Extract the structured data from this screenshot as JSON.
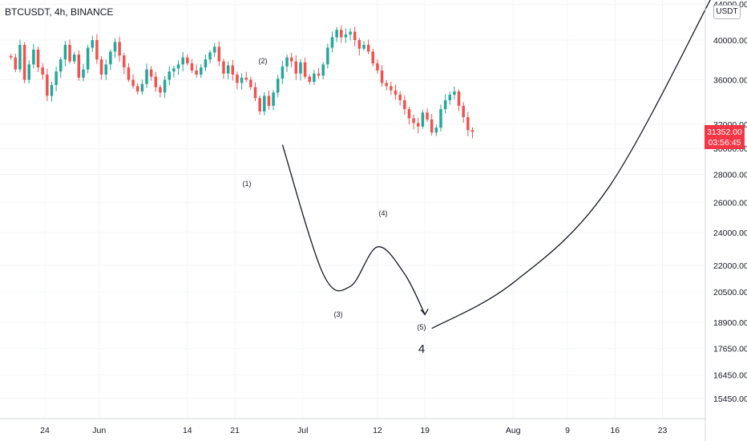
{
  "header": {
    "title": "BTCUSDT, 4h, BINANCE",
    "currency_badge": "USDT"
  },
  "chart_data": {
    "type": "candlestick",
    "symbol": "BTCUSDT",
    "interval": "4h",
    "exchange": "BINANCE",
    "y_axis": {
      "scale": "log",
      "ticks": [
        "44000.00",
        "40000.00",
        "36000.00",
        "32000.00",
        "30000.00",
        "28000.00",
        "26000.00",
        "24000.00",
        "22000.00",
        "20500.00",
        "18900.00",
        "17650.00",
        "16450.00",
        "15450.00"
      ],
      "tick_values": [
        44000,
        40000,
        36000,
        32000,
        30000,
        28000,
        26000,
        24000,
        22000,
        20500,
        18900,
        17650,
        16450,
        15450
      ]
    },
    "x_axis": {
      "ticks": [
        "24",
        "Jun",
        "14",
        "21",
        "Jul",
        "12",
        "19",
        "Aug",
        "9",
        "16",
        "23"
      ],
      "tick_dates": [
        "2021-05-24",
        "2021-06-01",
        "2021-06-14",
        "2021-06-21",
        "2021-07-01",
        "2021-07-12",
        "2021-07-19",
        "2021-08-01",
        "2021-08-09",
        "2021-08-16",
        "2021-08-23"
      ]
    },
    "last_price": {
      "value": "31352.00",
      "countdown": "03:56:45",
      "color": "#f23645"
    },
    "candles": {
      "start": "2021-05-19",
      "step_days": 0.6667,
      "closes": [
        38200,
        37000,
        39500,
        36000,
        37500,
        39000,
        37200,
        36500,
        34500,
        35500,
        36800,
        38000,
        39500,
        37800,
        38500,
        36200,
        37000,
        39200,
        40000,
        38000,
        36500,
        37500,
        38800,
        39800,
        38400,
        37200,
        36000,
        35400,
        34900,
        35600,
        37000,
        36300,
        35300,
        34800,
        36000,
        36800,
        37100,
        37500,
        38200,
        37600,
        36900,
        36500,
        37200,
        38000,
        38700,
        39300,
        37800,
        36600,
        37400,
        36500,
        35700,
        36200,
        36000,
        35300,
        34300,
        33100,
        34500,
        33600,
        34800,
        36100,
        37300,
        38200,
        37800,
        36600,
        37700,
        36300,
        35800,
        36600,
        36400,
        37500,
        39200,
        40300,
        41100,
        40300,
        40600,
        40900,
        40000,
        39100,
        39500,
        38800,
        37600,
        36900,
        35700,
        35400,
        35000,
        34600,
        34100,
        33300,
        32500,
        32100,
        31800,
        33000,
        32400,
        31300,
        31700,
        33300,
        34100,
        34600,
        34900,
        33600,
        32600,
        31500,
        31352
      ],
      "up_color": "#26a69a",
      "down_color": "#ef5350"
    },
    "projection": {
      "labels": [
        "(1)",
        "(2)",
        "(3)",
        "(4)",
        "(5)",
        "4"
      ],
      "path_dates": [
        "2021-06-28",
        "2021-07-04",
        "2021-07-08",
        "2021-07-12",
        "2021-07-16",
        "2021-07-19"
      ],
      "path_prices": [
        30300,
        21500,
        20800,
        23100,
        21500,
        19300
      ],
      "continuation_dates": [
        "2021-07-20",
        "2021-08-01",
        "2021-08-15",
        "2021-08-31"
      ],
      "continuation_prices": [
        18600,
        21000,
        27000,
        46000
      ]
    },
    "grid": true
  }
}
